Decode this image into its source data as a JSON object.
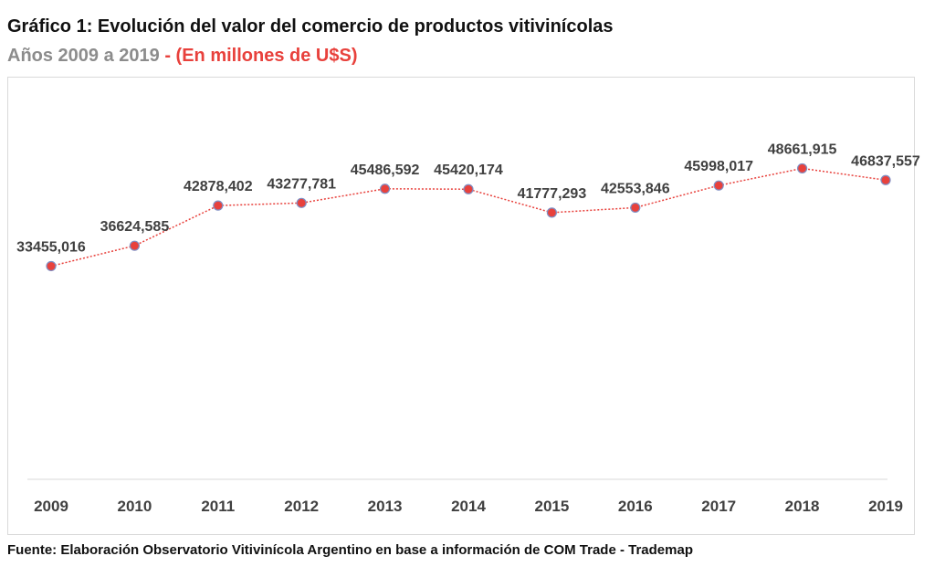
{
  "title": "Gráfico 1: Evolución del valor del comercio de productos vitivinícolas",
  "subtitle_years": "Años 2009 a 2019",
  "subtitle_units": " - (En millones de U$S)",
  "footer": "Fuente: Elaboración Observatorio Vitivinícola Argentino en base a información de COM Trade - Trademap",
  "colors": {
    "line": "#e8413c",
    "marker": "#e8413c",
    "marker_edge": "#7f8fc4",
    "axis": "#d9d9d9"
  },
  "chart_data": {
    "type": "line",
    "title": "Gráfico 1: Evolución del valor del comercio de productos vitivinícolas",
    "xlabel": "",
    "ylabel": "En millones de U$S",
    "categories": [
      "2009",
      "2010",
      "2011",
      "2012",
      "2013",
      "2014",
      "2015",
      "2016",
      "2017",
      "2018",
      "2019"
    ],
    "values": [
      33455.016,
      36624.585,
      42878.402,
      43277.781,
      45486.592,
      45420.174,
      41777.293,
      42553.846,
      45998.017,
      48661.915,
      46837.557
    ],
    "labels": [
      "33455,016",
      "36624,585",
      "42878,402",
      "43277,781",
      "45486,592",
      "45420,174",
      "41777,293",
      "42553,846",
      "45998,017",
      "48661,915",
      "46837,557"
    ],
    "ylim": [
      0,
      60000
    ],
    "grid": false,
    "legend": "none"
  }
}
